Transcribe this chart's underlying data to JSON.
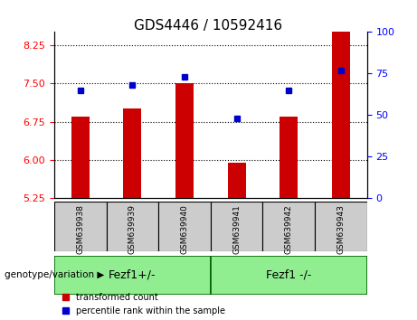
{
  "title": "GDS4446 / 10592416",
  "samples": [
    "GSM639938",
    "GSM639939",
    "GSM639940",
    "GSM639941",
    "GSM639942",
    "GSM639943"
  ],
  "transformed_count": [
    6.85,
    7.0,
    7.5,
    5.95,
    6.85,
    8.6
  ],
  "percentile_rank": [
    65,
    68,
    73,
    48,
    65,
    77
  ],
  "bar_bottom": 5.25,
  "ylim_left": [
    5.25,
    8.5
  ],
  "ylim_right": [
    0,
    100
  ],
  "yticks_left": [
    5.25,
    6.0,
    6.75,
    7.5,
    8.25
  ],
  "yticks_right": [
    0,
    25,
    50,
    75,
    100
  ],
  "bar_color": "#cc0000",
  "dot_color": "#0000cc",
  "grid_color": "#000000",
  "groups": [
    {
      "label": "Fezf1+/-",
      "samples": [
        0,
        1,
        2
      ],
      "color": "#90ee90"
    },
    {
      "label": "Fezf1 -/-",
      "samples": [
        3,
        4,
        5
      ],
      "color": "#90ee90"
    }
  ],
  "group_label_prefix": "genotype/variation",
  "legend_items": [
    {
      "label": "transformed count",
      "color": "#cc0000"
    },
    {
      "label": "percentile rank within the sample",
      "color": "#0000cc"
    }
  ],
  "background_plot": "#ffffff",
  "tick_label_area_color": "#cccccc",
  "group_area_color": "#90ee90",
  "group_area_border_color": "#006600"
}
